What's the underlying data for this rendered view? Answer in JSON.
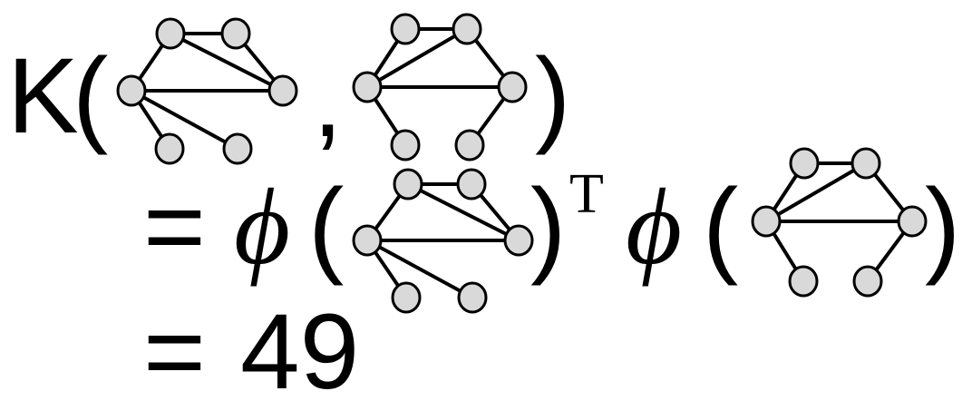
{
  "formula": {
    "kernel_symbol": "K",
    "open_paren": "(",
    "comma": ",",
    "close_paren": ")",
    "equals": "=",
    "phi": "ϕ",
    "transpose": "T",
    "result": "49"
  },
  "colors": {
    "node_fill": "#d9d9d9",
    "stroke": "#000000",
    "text": "#000000",
    "background": "#ffffff"
  },
  "graphs": {
    "graph_a": {
      "nodes": [
        "n1",
        "n2",
        "n3",
        "n4",
        "n5",
        "n6"
      ],
      "edges": [
        [
          "n1",
          "n2"
        ],
        [
          "n1",
          "n3"
        ],
        [
          "n2",
          "n4"
        ],
        [
          "n3",
          "n4"
        ],
        [
          "n3",
          "n5"
        ],
        [
          "n3",
          "n6"
        ],
        [
          "n3",
          "n4"
        ]
      ]
    },
    "graph_b": {
      "nodes": [
        "n1",
        "n2",
        "n3",
        "n4",
        "n5",
        "n6"
      ],
      "edges": [
        [
          "n1",
          "n2"
        ],
        [
          "n1",
          "n3"
        ],
        [
          "n2",
          "n4"
        ],
        [
          "n3",
          "n4"
        ],
        [
          "n3",
          "n2"
        ],
        [
          "n3",
          "n5"
        ],
        [
          "n4",
          "n6"
        ]
      ]
    }
  }
}
